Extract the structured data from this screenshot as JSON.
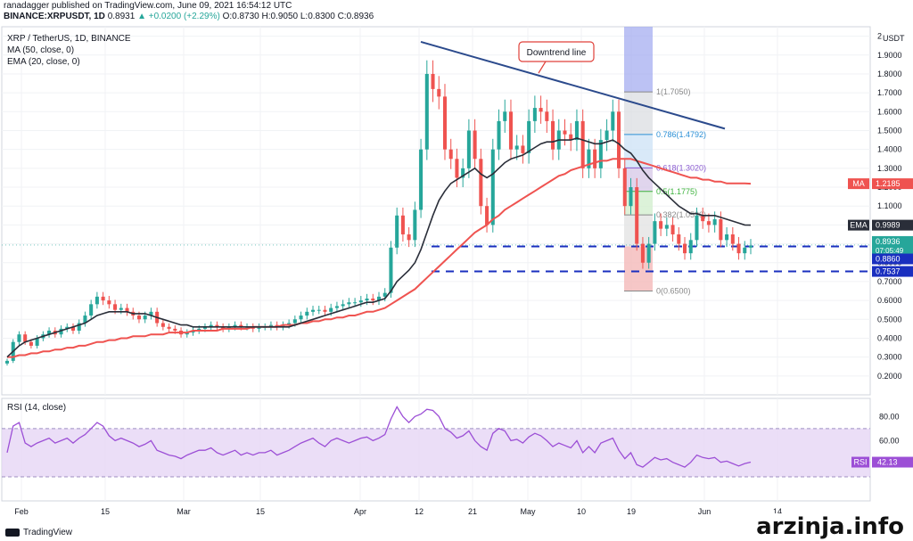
{
  "header": {
    "line1": "ranadagger published on TradingView.com, June 09, 2021 16:54:12 UTC",
    "symbol": "BINANCE:XRPUSDT, 1D",
    "last": "0.8931",
    "change": "▲ +0.0200 (+2.29%)",
    "ohlc": "O:0.8730 H:0.9050 L:0.8300 C:0.8936"
  },
  "legend": {
    "title": "XRP / TetherUS, 1D, BINANCE",
    "ma": "MA (50, close, 0)",
    "ema": "EMA (20, close, 0)",
    "rsi": "RSI (14, close)"
  },
  "annotation": {
    "text": "Downtrend line"
  },
  "footer": {
    "brand": "TradingView",
    "watermark": "arzinja.info"
  },
  "colors": {
    "up": "#26a69a",
    "down": "#ef5350",
    "ema": "#2a2e39",
    "ma": "#ef5350",
    "trend": "#2b4a8c",
    "support": "#1a2fbf",
    "rsi": "#9c4fd6",
    "rsi_band": "#e6d6f5",
    "annot": "#e0413a"
  },
  "chart_data": [
    {
      "type": "candlestick",
      "title": "XRP / TetherUS, 1D, BINANCE",
      "ylabel": "USDT",
      "ylim": [
        0.1,
        2.05
      ],
      "x_labels": [
        "Feb",
        "15",
        "Mar",
        "15",
        "Apr",
        "12",
        "21",
        "May",
        "10",
        "19",
        "Jun",
        "14"
      ],
      "y_ticks": [
        "2",
        "1.9000",
        "1.8000",
        "1.7000",
        "1.6000",
        "1.5000",
        "1.4000",
        "1.3000",
        "1.2000",
        "1.1000",
        "1.0000",
        "0.9000",
        "0.8000",
        "0.7000",
        "0.6000",
        "0.5000",
        "0.4000",
        "0.3000",
        "0.2000"
      ],
      "y_tick_values": [
        2.0,
        1.9,
        1.8,
        1.7,
        1.6,
        1.5,
        1.4,
        1.3,
        1.2,
        1.1,
        1.0,
        0.9,
        0.8,
        0.7,
        0.6,
        0.5,
        0.4,
        0.3,
        0.2
      ],
      "close": [
        0.28,
        0.38,
        0.42,
        0.38,
        0.36,
        0.4,
        0.42,
        0.44,
        0.42,
        0.45,
        0.46,
        0.44,
        0.48,
        0.52,
        0.58,
        0.62,
        0.6,
        0.58,
        0.55,
        0.56,
        0.54,
        0.52,
        0.5,
        0.52,
        0.54,
        0.48,
        0.46,
        0.45,
        0.44,
        0.42,
        0.43,
        0.44,
        0.45,
        0.46,
        0.47,
        0.46,
        0.45,
        0.46,
        0.47,
        0.46,
        0.46,
        0.45,
        0.46,
        0.46,
        0.47,
        0.46,
        0.47,
        0.48,
        0.5,
        0.52,
        0.54,
        0.55,
        0.55,
        0.54,
        0.56,
        0.57,
        0.58,
        0.59,
        0.59,
        0.6,
        0.61,
        0.6,
        0.62,
        0.64,
        0.88,
        1.05,
        0.95,
        0.92,
        1.08,
        1.4,
        1.8,
        1.72,
        1.68,
        1.4,
        1.35,
        1.25,
        1.3,
        1.5,
        1.35,
        1.1,
        1.0,
        1.4,
        1.55,
        1.6,
        1.4,
        1.42,
        1.38,
        1.55,
        1.62,
        1.6,
        1.55,
        1.4,
        1.5,
        1.48,
        1.45,
        1.55,
        1.3,
        1.4,
        1.3,
        1.45,
        1.5,
        1.6,
        1.3,
        1.1,
        1.2,
        0.9,
        0.8,
        0.9,
        1.02,
        0.98,
        1.0,
        0.95,
        0.9,
        0.85,
        0.92,
        1.05,
        1.02,
        1.0,
        1.03,
        0.92,
        0.95,
        0.9,
        0.85,
        0.88,
        0.89
      ],
      "ema20": [
        0.3,
        0.33,
        0.36,
        0.38,
        0.39,
        0.4,
        0.41,
        0.42,
        0.43,
        0.44,
        0.45,
        0.46,
        0.47,
        0.48,
        0.5,
        0.52,
        0.53,
        0.54,
        0.54,
        0.54,
        0.54,
        0.53,
        0.53,
        0.53,
        0.52,
        0.51,
        0.5,
        0.49,
        0.48,
        0.47,
        0.47,
        0.46,
        0.46,
        0.46,
        0.46,
        0.46,
        0.46,
        0.46,
        0.46,
        0.46,
        0.46,
        0.46,
        0.46,
        0.46,
        0.46,
        0.46,
        0.46,
        0.46,
        0.47,
        0.48,
        0.49,
        0.5,
        0.51,
        0.52,
        0.53,
        0.54,
        0.55,
        0.56,
        0.57,
        0.58,
        0.59,
        0.59,
        0.6,
        0.61,
        0.65,
        0.7,
        0.73,
        0.76,
        0.8,
        0.87,
        0.96,
        1.05,
        1.13,
        1.18,
        1.22,
        1.24,
        1.26,
        1.28,
        1.3,
        1.27,
        1.25,
        1.27,
        1.3,
        1.33,
        1.35,
        1.36,
        1.37,
        1.39,
        1.41,
        1.43,
        1.44,
        1.44,
        1.45,
        1.45,
        1.45,
        1.46,
        1.45,
        1.44,
        1.43,
        1.43,
        1.44,
        1.45,
        1.43,
        1.4,
        1.38,
        1.34,
        1.29,
        1.25,
        1.22,
        1.19,
        1.16,
        1.13,
        1.1,
        1.08,
        1.06,
        1.06,
        1.05,
        1.05,
        1.05,
        1.04,
        1.03,
        1.02,
        1.01,
        1.0,
        0.999
      ],
      "ma50": [
        0.3,
        0.3,
        0.31,
        0.31,
        0.32,
        0.32,
        0.33,
        0.33,
        0.34,
        0.34,
        0.35,
        0.35,
        0.36,
        0.36,
        0.37,
        0.38,
        0.38,
        0.39,
        0.39,
        0.4,
        0.4,
        0.41,
        0.41,
        0.41,
        0.42,
        0.42,
        0.42,
        0.43,
        0.43,
        0.43,
        0.43,
        0.44,
        0.44,
        0.44,
        0.44,
        0.44,
        0.45,
        0.45,
        0.45,
        0.45,
        0.45,
        0.46,
        0.46,
        0.46,
        0.46,
        0.46,
        0.47,
        0.47,
        0.47,
        0.48,
        0.48,
        0.49,
        0.49,
        0.5,
        0.5,
        0.51,
        0.51,
        0.52,
        0.52,
        0.53,
        0.54,
        0.54,
        0.55,
        0.56,
        0.58,
        0.6,
        0.62,
        0.64,
        0.66,
        0.69,
        0.72,
        0.75,
        0.78,
        0.81,
        0.84,
        0.87,
        0.9,
        0.93,
        0.96,
        0.98,
        1.0,
        1.03,
        1.05,
        1.08,
        1.1,
        1.12,
        1.14,
        1.16,
        1.18,
        1.2,
        1.22,
        1.24,
        1.26,
        1.27,
        1.29,
        1.3,
        1.31,
        1.32,
        1.33,
        1.34,
        1.34,
        1.35,
        1.35,
        1.35,
        1.35,
        1.34,
        1.33,
        1.32,
        1.31,
        1.3,
        1.29,
        1.28,
        1.27,
        1.26,
        1.25,
        1.25,
        1.24,
        1.24,
        1.23,
        1.23,
        1.22,
        1.22,
        1.22,
        1.22,
        1.2185
      ],
      "price_badges": [
        {
          "label": "MA",
          "value": "1.2185"
        },
        {
          "label": "EMA",
          "value": "0.9989"
        },
        {
          "label": "",
          "value": "0.8936",
          "sub": "07:05:49"
        },
        {
          "label": "",
          "value": "0.8860"
        },
        {
          "label": "",
          "value": "0.7537"
        }
      ],
      "horizontal_levels": [
        0.886,
        0.7537
      ],
      "trend_line": {
        "from": [
          0.0,
          1.97
        ],
        "to": [
          0.75,
          1.51
        ],
        "label": "Downtrend line"
      },
      "fibonacci": [
        {
          "label": "1(1.7050)",
          "value": 1.705
        },
        {
          "label": "0.786(1.4792)",
          "value": 1.4792
        },
        {
          "label": "0.618(1.3020)",
          "value": 1.302
        },
        {
          "label": "0.5(1.1775)",
          "value": 1.1775
        },
        {
          "label": "0.382(1.0530)",
          "value": 1.053
        },
        {
          "label": "0(0.6500)",
          "value": 0.65
        }
      ]
    },
    {
      "type": "line",
      "title": "RSI (14, close)",
      "ylim": [
        10,
        95
      ],
      "y_ticks": [
        "80.00",
        "60.00",
        "40.00"
      ],
      "y_tick_values": [
        80,
        60,
        40
      ],
      "band": [
        30,
        70
      ],
      "current": "42.13",
      "values": [
        50,
        72,
        75,
        58,
        55,
        58,
        60,
        62,
        58,
        60,
        62,
        58,
        62,
        65,
        70,
        75,
        72,
        64,
        60,
        62,
        60,
        58,
        55,
        57,
        60,
        52,
        50,
        48,
        47,
        45,
        48,
        50,
        52,
        52,
        54,
        50,
        48,
        50,
        52,
        48,
        50,
        48,
        50,
        50,
        52,
        48,
        50,
        52,
        55,
        58,
        60,
        62,
        58,
        55,
        60,
        62,
        60,
        58,
        60,
        62,
        63,
        60,
        62,
        65,
        78,
        88,
        80,
        75,
        80,
        82,
        86,
        85,
        80,
        70,
        67,
        62,
        64,
        68,
        60,
        55,
        52,
        66,
        70,
        68,
        60,
        61,
        58,
        63,
        66,
        64,
        60,
        55,
        58,
        56,
        54,
        60,
        50,
        55,
        50,
        58,
        60,
        62,
        52,
        45,
        50,
        40,
        38,
        42,
        46,
        44,
        45,
        42,
        40,
        38,
        42,
        48,
        46,
        45,
        46,
        42,
        43,
        41,
        39,
        41,
        42.13
      ]
    }
  ]
}
